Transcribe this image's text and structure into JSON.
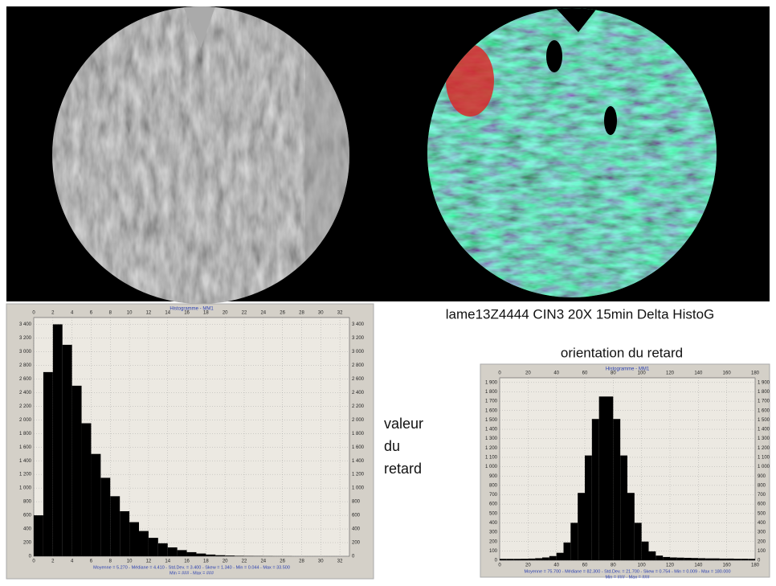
{
  "slide": {
    "caption": "lame13Z4444 CIN3 20X 15min Delta HistoG",
    "orientation_label": "orientation du retard",
    "value_label": [
      "valeur",
      "du",
      "retard"
    ]
  },
  "chart_data": [
    {
      "type": "histogram",
      "title": "Histogramme - MM1",
      "color": "#000000",
      "grid": true,
      "footer": [
        "Moyenne = 5.270 - Médiane = 4.410 - Std.Dev. = 3.400 - Skew = 1.340 - Min = 0.044 - Max = 33.500",
        "Min = ### - Max = ###"
      ],
      "bins": [
        0,
        1,
        2,
        3,
        4,
        5,
        6,
        7,
        8,
        9,
        10,
        11,
        12,
        13,
        14,
        15,
        16,
        17,
        18,
        19,
        20,
        21,
        22,
        23,
        24,
        25,
        26,
        27,
        28,
        29,
        30,
        31,
        32,
        33
      ],
      "values": [
        600,
        2700,
        3400,
        3100,
        2500,
        1950,
        1500,
        1150,
        880,
        660,
        500,
        370,
        270,
        190,
        130,
        90,
        60,
        40,
        25,
        15,
        10,
        6,
        4,
        3,
        2,
        1,
        1,
        0,
        0,
        0,
        0,
        0,
        0
      ],
      "xlim": [
        0,
        33
      ],
      "xticks": [
        0,
        2,
        4,
        6,
        8,
        10,
        12,
        14,
        16,
        18,
        20,
        22,
        24,
        26,
        28,
        30,
        32
      ],
      "ylim": [
        0,
        3500
      ],
      "yticks": [
        0,
        200,
        400,
        600,
        800,
        {
          "value": 1000,
          "label": "1 000"
        },
        {
          "value": 1200,
          "label": "1 200"
        },
        {
          "value": 1400,
          "label": "1 400"
        },
        {
          "value": 1600,
          "label": "1 600"
        },
        {
          "value": 1800,
          "label": "1 800"
        },
        {
          "value": 2000,
          "label": "2 000"
        },
        {
          "value": 2200,
          "label": "2 200"
        },
        {
          "value": 2400,
          "label": "2 400"
        },
        {
          "value": 2600,
          "label": "2 600"
        },
        {
          "value": 2800,
          "label": "2 800"
        },
        {
          "value": 3000,
          "label": "3 000"
        },
        {
          "value": 3200,
          "label": "3 200"
        },
        {
          "value": 3400,
          "label": "3 400"
        }
      ]
    },
    {
      "type": "histogram",
      "title": "Histogramme - MM1",
      "color": "#000000",
      "grid": true,
      "footer": [
        "Moyenne = 75.700 - Médiane = 82.300 - Std.Dev. = 21.700 - Skew = 0.754 - Min = 0.009 - Max = 180.000",
        "Min = ### - Max = ###"
      ],
      "bins": [
        0,
        5,
        10,
        15,
        20,
        25,
        30,
        35,
        40,
        45,
        50,
        55,
        60,
        65,
        70,
        75,
        80,
        85,
        90,
        95,
        100,
        105,
        110,
        115,
        120,
        125,
        130,
        135,
        140,
        145,
        150,
        155,
        160,
        165,
        170,
        175,
        180
      ],
      "values": [
        15,
        15,
        15,
        16,
        18,
        22,
        30,
        45,
        80,
        190,
        400,
        720,
        1120,
        1510,
        1750,
        1750,
        1510,
        1120,
        720,
        400,
        200,
        95,
        50,
        35,
        30,
        28,
        26,
        24,
        22,
        20,
        20,
        18,
        18,
        16,
        16,
        15
      ],
      "xlim": [
        0,
        180
      ],
      "xticks": [
        0,
        20,
        40,
        60,
        80,
        100,
        120,
        140,
        160,
        180
      ],
      "ylim": [
        0,
        1950
      ],
      "yticks": [
        0,
        100,
        200,
        300,
        400,
        500,
        600,
        700,
        800,
        900,
        {
          "value": 1000,
          "label": "1 000"
        },
        {
          "value": 1100,
          "label": "1 100"
        },
        {
          "value": 1200,
          "label": "1 200"
        },
        {
          "value": 1300,
          "label": "1 300"
        },
        {
          "value": 1400,
          "label": "1 400"
        },
        {
          "value": 1500,
          "label": "1 500"
        },
        {
          "value": 1600,
          "label": "1 600"
        },
        {
          "value": 1700,
          "label": "1 700"
        },
        {
          "value": 1800,
          "label": "1 800"
        },
        {
          "value": 1900,
          "label": "1 900"
        }
      ]
    }
  ]
}
